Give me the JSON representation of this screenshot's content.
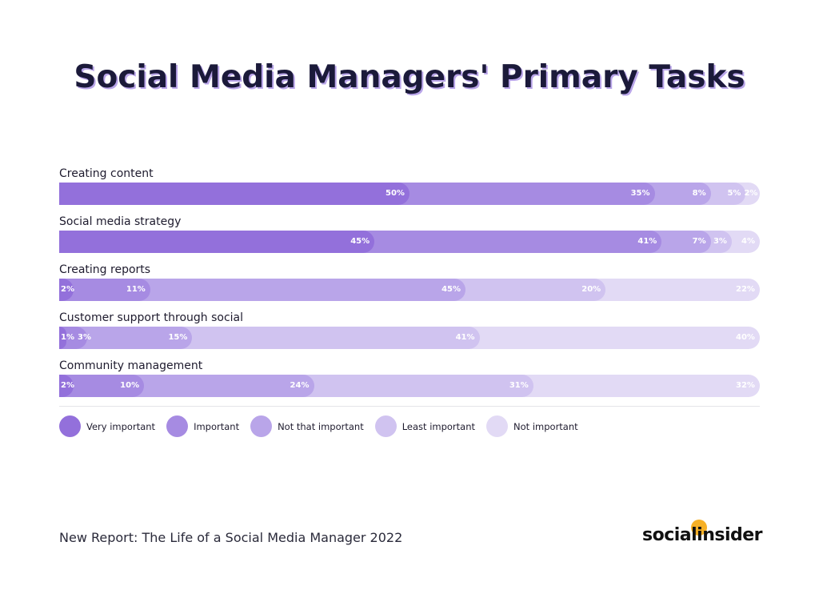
{
  "chart_data": {
    "type": "bar",
    "orientation": "horizontal-stacked",
    "title": "Social Media Managers' Primary Tasks",
    "categories": [
      "Creating content",
      "Social media strategy",
      "Creating reports",
      "Customer support through social",
      "Community management"
    ],
    "series": [
      {
        "name": "Very important",
        "color": "#9370DB",
        "values": [
          50,
          45,
          2,
          1,
          2
        ]
      },
      {
        "name": "Important",
        "color": "#A68BE2",
        "values": [
          35,
          41,
          11,
          3,
          10
        ]
      },
      {
        "name": "Not that important",
        "color": "#B9A5E9",
        "values": [
          8,
          7,
          45,
          15,
          24
        ]
      },
      {
        "name": "Least important",
        "color": "#D0C3F0",
        "values": [
          5,
          3,
          20,
          41,
          31
        ]
      },
      {
        "name": "Not important",
        "color": "#E2DAF5",
        "values": [
          2,
          4,
          22,
          40,
          32
        ]
      }
    ],
    "unit": "%",
    "legend_position": "bottom-left",
    "grid": false
  },
  "footer": "New Report: The Life of a Social Media Manager 2022",
  "logo": "socialinsider"
}
